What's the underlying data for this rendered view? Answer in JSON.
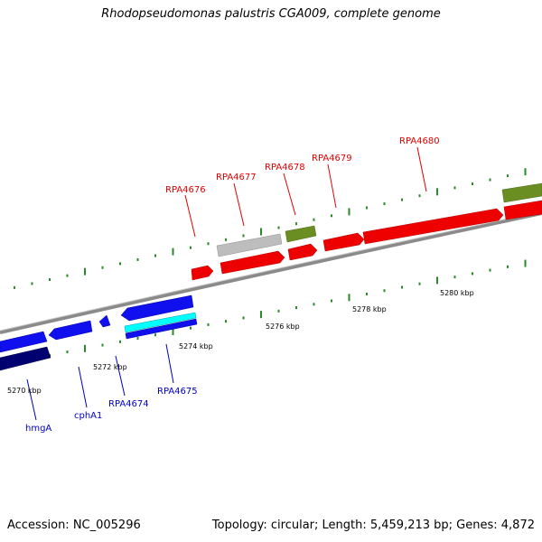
{
  "title": "Rhodopseudomonas palustris CGA009, complete genome",
  "footer": {
    "accession": "Accession: NC_005296",
    "summary": "Topology: circular; Length: 5,459,213 bp; Genes: 4,872"
  },
  "colors": {
    "forward_label": "#e00000",
    "reverse_label": "#0000c0",
    "tick": "#2a8a2a",
    "backbone": "#808080"
  },
  "scale": {
    "unit": "kbp",
    "labels": [
      {
        "kbp": 5270,
        "text": "5270 kbp"
      },
      {
        "kbp": 5272,
        "text": "5272 kbp"
      },
      {
        "kbp": 5274,
        "text": "5274 kbp"
      },
      {
        "kbp": 5276,
        "text": "5276 kbp"
      },
      {
        "kbp": 5278,
        "text": "5278 kbp"
      },
      {
        "kbp": 5280,
        "text": "5280 kbp"
      }
    ]
  },
  "gene_labels_forward": [
    {
      "name": "RPA4676",
      "color": "#e00000"
    },
    {
      "name": "RPA4677",
      "color": "#e00000"
    },
    {
      "name": "RPA4678",
      "color": "#e00000"
    },
    {
      "name": "RPA4679",
      "color": "#e00000"
    },
    {
      "name": "RPA4680",
      "color": "#e00000"
    }
  ],
  "gene_labels_reverse": [
    {
      "name": "hmgA",
      "color": "#0000c0"
    },
    {
      "name": "cphA1",
      "color": "#0000c0"
    },
    {
      "name": "RPA4674",
      "color": "#0000c0"
    },
    {
      "name": "RPA4675",
      "color": "#0000c0"
    }
  ]
}
